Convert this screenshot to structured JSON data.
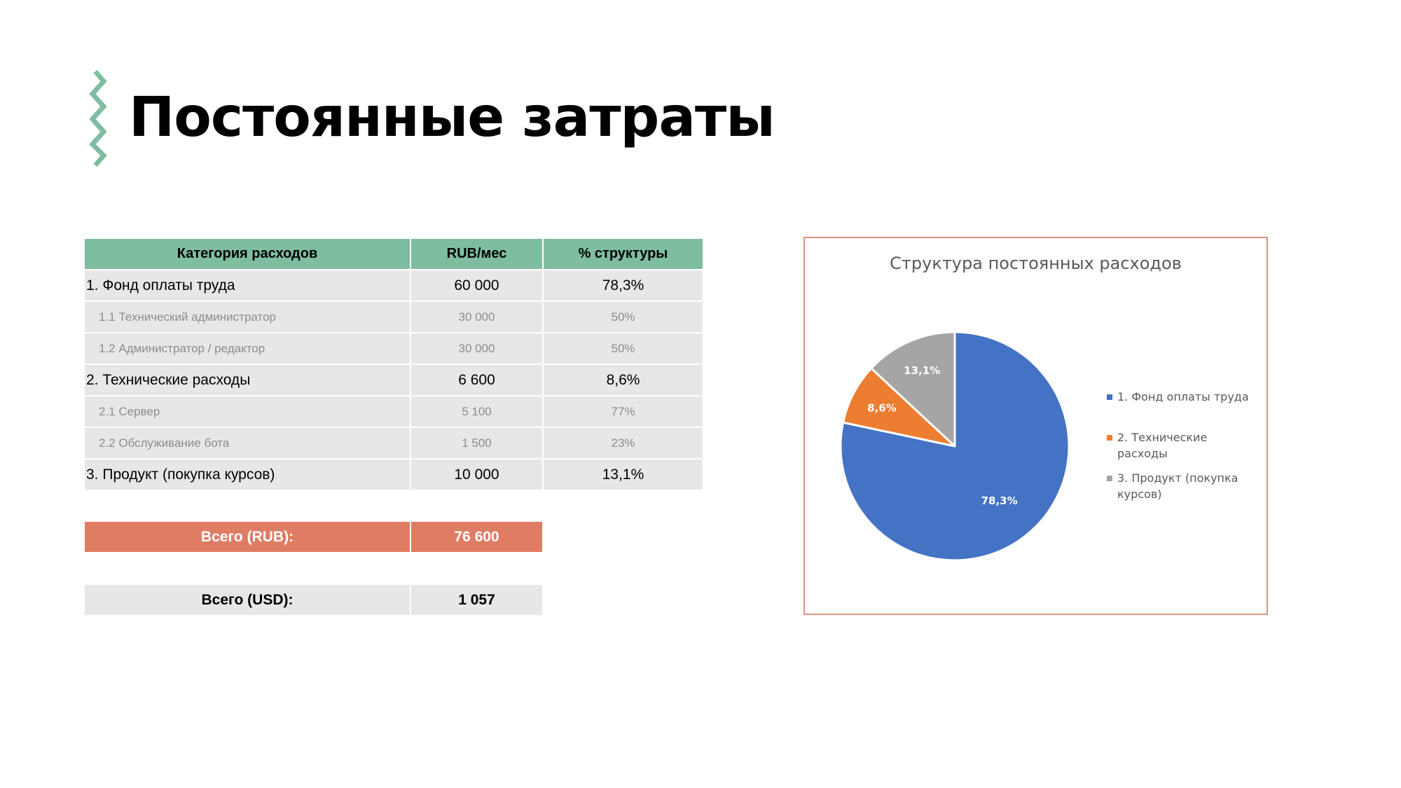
{
  "page": {
    "title": "Постоянные затраты",
    "accent_color": "#7fbda0"
  },
  "table": {
    "headers": [
      "Категория расходов",
      "RUB/мес",
      "% структуры"
    ],
    "rows": [
      {
        "level": "main",
        "category": "1. Фонд оплаты труда",
        "rub": "60 000",
        "pct": "78,3%"
      },
      {
        "level": "sub",
        "category": "1.1 Технический администратор",
        "rub": "30 000",
        "pct": "50%"
      },
      {
        "level": "sub",
        "category": "1.2 Администратор / редактор",
        "rub": "30 000",
        "pct": "50%"
      },
      {
        "level": "main",
        "category": "2. Технические расходы",
        "rub": "6 600",
        "pct": "8,6%"
      },
      {
        "level": "sub",
        "category": "2.1 Сервер",
        "rub": "5 100",
        "pct": "77%"
      },
      {
        "level": "sub",
        "category": "2.2 Обслуживание бота",
        "rub": "1 500",
        "pct": "23%"
      },
      {
        "level": "main",
        "category": "3. Продукт (покупка курсов)",
        "rub": "10 000",
        "pct": "13,1%"
      }
    ]
  },
  "totals": {
    "rub_label": "Всего (RUB):",
    "rub_value": "76 600",
    "usd_label": "Всего (USD):",
    "usd_value": "1 057",
    "rub_color": "#df7c64"
  },
  "chart_data": {
    "type": "pie",
    "title": "Структура постоянных расходов",
    "categories": [
      "1. Фонд оплаты труда",
      "2. Технические расходы",
      "3. Продукт (покупка курсов)"
    ],
    "values": [
      60000,
      6600,
      10000
    ],
    "labels": [
      "78,3%",
      "8,6%",
      "13,1%"
    ],
    "colors": [
      "#4472c4",
      "#ed7d31",
      "#a5a5a5"
    ],
    "legend": "right"
  }
}
